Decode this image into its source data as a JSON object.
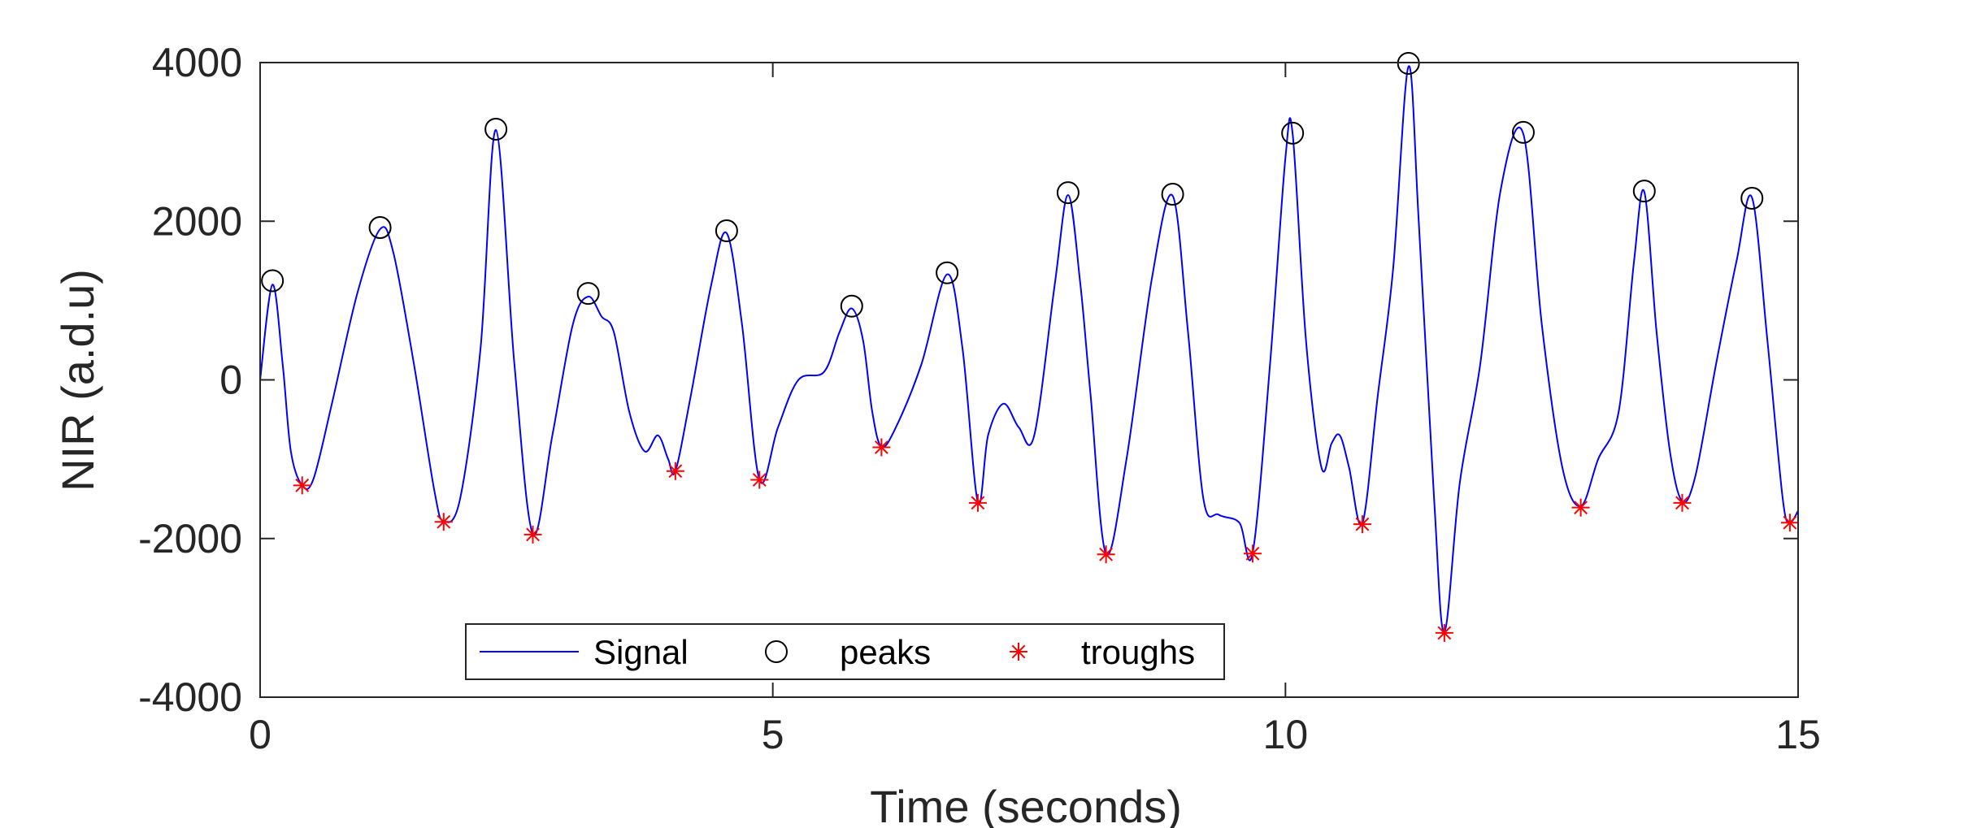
{
  "chart_data": {
    "type": "line",
    "xlabel": "Time (seconds)",
    "ylabel": "NIR (a.d.u)",
    "xlim": [
      0,
      15
    ],
    "ylim": [
      -4000,
      4000
    ],
    "xticks": [
      0,
      5,
      10,
      15
    ],
    "yticks": [
      -4000,
      -2000,
      0,
      2000,
      4000
    ],
    "x_tick_labels": [
      "0",
      "5",
      "10",
      "15"
    ],
    "y_tick_labels": [
      "-4000",
      "-2000",
      "0",
      "2000",
      "4000"
    ],
    "grid": false,
    "legend_position": "bottom-center",
    "legend": {
      "signal": "Signal",
      "peaks": "peaks",
      "troughs": "troughs"
    },
    "colors": {
      "signal": "#0000ff",
      "peaks": "#000000",
      "troughs": "#ff0000",
      "axes": "#262626"
    },
    "series": [
      {
        "name": "Signal",
        "x": [
          0,
          0.12,
          0.22,
          0.3,
          0.41,
          0.52,
          0.7,
          0.95,
          1.17,
          1.3,
          1.5,
          1.7,
          1.79,
          1.95,
          2.15,
          2.3,
          2.48,
          2.66,
          2.85,
          3.05,
          3.2,
          3.33,
          3.45,
          3.6,
          3.75,
          3.88,
          3.98,
          4.05,
          4.2,
          4.4,
          4.55,
          4.7,
          4.87,
          5.05,
          5.25,
          5.5,
          5.65,
          5.77,
          5.88,
          5.97,
          6.06,
          6.2,
          6.45,
          6.7,
          6.85,
          7.0,
          7.1,
          7.25,
          7.4,
          7.55,
          7.75,
          7.88,
          8.0,
          8.1,
          8.25,
          8.45,
          8.7,
          8.9,
          9.05,
          9.2,
          9.35,
          9.55,
          9.68,
          9.85,
          10.0,
          10.07,
          10.2,
          10.35,
          10.45,
          10.53,
          10.62,
          10.75,
          10.9,
          11.05,
          11.2,
          11.3,
          11.45,
          11.55,
          11.7,
          11.9,
          12.1,
          12.32,
          12.5,
          12.7,
          12.88,
          13.05,
          13.25,
          13.4,
          13.5,
          13.62,
          13.75,
          13.87,
          14.0,
          14.2,
          14.4,
          14.55,
          14.7,
          14.85,
          14.92,
          15.0
        ],
        "values": [
          0,
          1200,
          200,
          -900,
          -1330,
          -1250,
          -300,
          1100,
          1900,
          1600,
          200,
          -1400,
          -1780,
          -1500,
          400,
          3150,
          200,
          -1940,
          -700,
          700,
          1050,
          800,
          600,
          -400,
          -900,
          -700,
          -1000,
          -1150,
          -200,
          1200,
          1850,
          700,
          -1260,
          -600,
          0,
          100,
          600,
          900,
          500,
          -400,
          -840,
          -600,
          200,
          1330,
          400,
          -1540,
          -700,
          -300,
          -600,
          -700,
          1200,
          2330,
          1200,
          -200,
          -2190,
          -1000,
          1300,
          2320,
          600,
          -1500,
          -1700,
          -1800,
          -2180,
          200,
          2800,
          3100,
          500,
          -1100,
          -800,
          -700,
          -1100,
          -1810,
          -200,
          1400,
          3950,
          2000,
          -1500,
          -3180,
          -1300,
          200,
          2400,
          3100,
          700,
          -1100,
          -1590,
          -1000,
          -400,
          1500,
          2370,
          600,
          -900,
          -1530,
          -1200,
          200,
          1500,
          2300,
          500,
          -1500,
          -1790,
          -1650
        ]
      },
      {
        "name": "peaks",
        "x": [
          0.12,
          1.17,
          2.3,
          3.2,
          4.55,
          5.77,
          6.7,
          7.88,
          8.9,
          10.07,
          11.2,
          12.32,
          13.5,
          14.55
        ],
        "values": [
          1250,
          1920,
          3160,
          1090,
          1880,
          930,
          1350,
          2360,
          2340,
          3110,
          3990,
          3120,
          2380,
          2290
        ]
      },
      {
        "name": "troughs",
        "x": [
          0.41,
          1.79,
          2.66,
          4.05,
          4.87,
          6.06,
          7.0,
          8.25,
          9.68,
          10.75,
          11.55,
          12.88,
          13.87,
          14.92
        ],
        "values": [
          -1330,
          -1790,
          -1950,
          -1150,
          -1260,
          -850,
          -1550,
          -2200,
          -2190,
          -1820,
          -3190,
          -1610,
          -1550,
          -1800
        ]
      }
    ]
  }
}
